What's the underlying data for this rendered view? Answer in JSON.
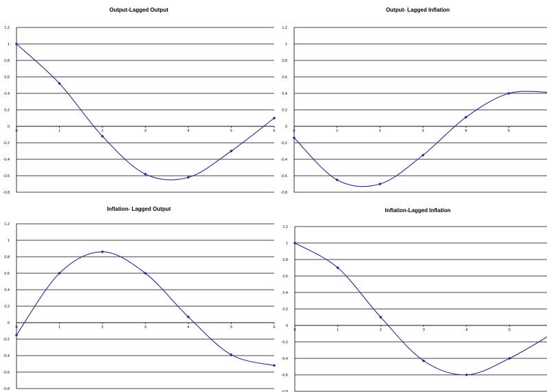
{
  "chart_data": [
    {
      "type": "line",
      "title": "Output-Lagged Output",
      "x": [
        0,
        1,
        2,
        3,
        4,
        5,
        6
      ],
      "series": [
        {
          "values": [
            1.0,
            0.52,
            -0.12,
            -0.58,
            -0.62,
            -0.3,
            0.1
          ]
        }
      ],
      "xticks": [
        "0",
        "1",
        "2",
        "3",
        "4",
        "5",
        "6"
      ],
      "yticks": [
        "1.2",
        "1",
        "0.8",
        "0.6",
        "0.4",
        "0.2",
        "0",
        "-0.2",
        "-0.4",
        "-0.6",
        "-0.8"
      ],
      "xlim": [
        0,
        6
      ],
      "ylim": [
        -0.8,
        1.2
      ],
      "grid": true
    },
    {
      "type": "line",
      "title": "Output- Lagged Inflation",
      "x": [
        0,
        1,
        2,
        3,
        4,
        5,
        6
      ],
      "series": [
        {
          "values": [
            -0.14,
            -0.65,
            -0.7,
            -0.35,
            0.11,
            0.4,
            0.41
          ]
        }
      ],
      "xticks": [
        "0",
        "1",
        "2",
        "3",
        "4",
        "5"
      ],
      "yticks": [
        "1.2",
        "1",
        "0.8",
        "0.6",
        "0.4",
        "0.2",
        "0",
        "-0.2",
        "-0.4",
        "-0.6",
        "-0.8"
      ],
      "xlim": [
        0,
        6
      ],
      "ylim": [
        -0.8,
        1.2
      ],
      "grid": true
    },
    {
      "type": "line",
      "title": "Inflation- Lagged Output",
      "x": [
        0,
        1,
        2,
        3,
        4,
        5,
        6
      ],
      "series": [
        {
          "values": [
            -0.15,
            0.6,
            0.86,
            0.6,
            0.07,
            -0.39,
            -0.52
          ]
        }
      ],
      "xticks": [
        "0",
        "1",
        "2",
        "3",
        "4",
        "5",
        "6"
      ],
      "yticks": [
        "1.2",
        "1",
        "0.8",
        "0.6",
        "0.4",
        "0.2",
        "0",
        "-0.2",
        "-0.4",
        "-0.6",
        "-0.8"
      ],
      "xlim": [
        0,
        6
      ],
      "ylim": [
        -0.8,
        1.2
      ],
      "grid": true
    },
    {
      "type": "line",
      "title": "Inflation-Lagged Inflation",
      "x": [
        0,
        1,
        2,
        3,
        4,
        5,
        6
      ],
      "series": [
        {
          "values": [
            1.0,
            0.7,
            0.1,
            -0.43,
            -0.6,
            -0.4,
            -0.1
          ]
        }
      ],
      "xticks": [
        "0",
        "1",
        "2",
        "3",
        "4",
        "5"
      ],
      "yticks": [
        "1.2",
        "1",
        "0.8",
        "0.6",
        "0.4",
        "0.2",
        "0",
        "-0.2",
        "-0.4",
        "-0.6",
        "-0.8"
      ],
      "xlim": [
        0,
        6
      ],
      "ylim": [
        -0.8,
        1.2
      ],
      "grid": true
    }
  ]
}
